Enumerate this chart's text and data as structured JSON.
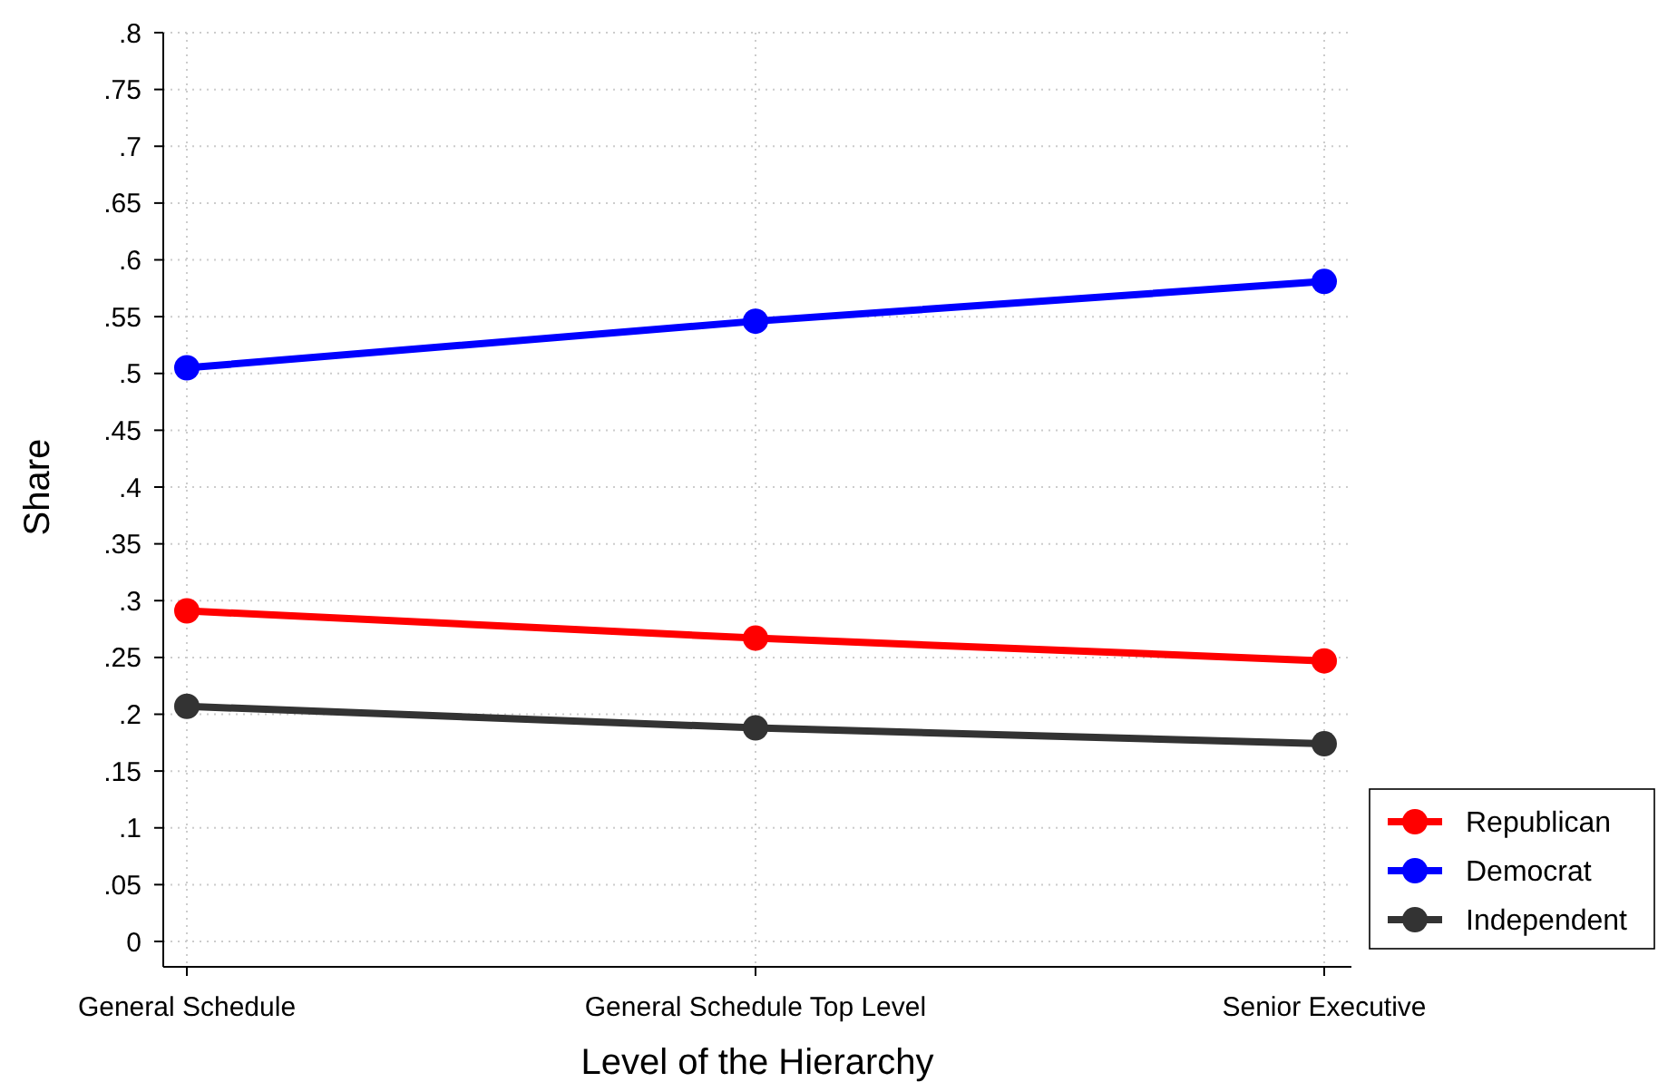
{
  "chart_data": {
    "type": "line",
    "xlabel": "Level of the Hierarchy",
    "ylabel": "Share",
    "categories": [
      "General Schedule",
      "General Schedule Top Level",
      "Senior Executive"
    ],
    "series": [
      {
        "name": "Republican",
        "color": "#ff0000",
        "values": [
          0.291,
          0.267,
          0.247
        ]
      },
      {
        "name": "Democrat",
        "color": "#0000ff",
        "values": [
          0.505,
          0.546,
          0.581
        ]
      },
      {
        "name": "Independent",
        "color": "#333333",
        "values": [
          0.207,
          0.188,
          0.174
        ]
      }
    ],
    "ylim": [
      0,
      0.8
    ],
    "yticks": [
      0,
      {
        "value": 0.05,
        "label": ".05"
      },
      {
        "value": 0.1,
        "label": ".1"
      },
      {
        "value": 0.15,
        "label": ".15"
      },
      {
        "value": 0.2,
        "label": ".2"
      },
      {
        "value": 0.25,
        "label": ".25"
      },
      {
        "value": 0.3,
        "label": ".3"
      },
      {
        "value": 0.35,
        "label": ".35"
      },
      {
        "value": 0.4,
        "label": ".4"
      },
      {
        "value": 0.45,
        "label": ".45"
      },
      {
        "value": 0.5,
        "label": ".5"
      },
      {
        "value": 0.55,
        "label": ".55"
      },
      {
        "value": 0.6,
        "label": ".6"
      },
      {
        "value": 0.65,
        "label": ".65"
      },
      {
        "value": 0.7,
        "label": ".7"
      },
      {
        "value": 0.75,
        "label": ".75"
      },
      {
        "value": 0.8,
        "label": ".8"
      }
    ],
    "grid": true,
    "legend": "bottom right",
    "marker": "circle",
    "line_style": "solid"
  }
}
